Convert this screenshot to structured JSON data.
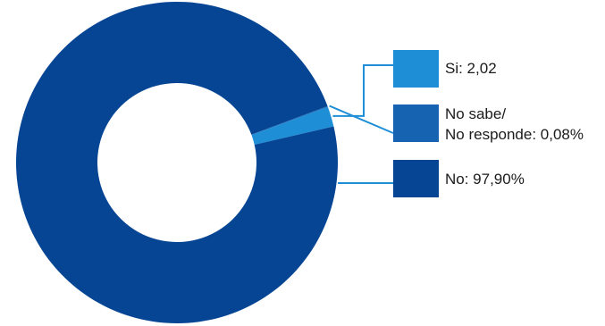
{
  "chart_data": {
    "type": "pie",
    "donut": true,
    "start_angle_deg": 0,
    "series": [
      {
        "values": [
          2.02,
          0.08,
          97.9
        ],
        "colors": [
          "#1e8fd6",
          "#1663b2",
          "#064594"
        ]
      }
    ],
    "legend": [
      {
        "lines": [
          "Si: 2,02"
        ],
        "color": "#1e8fd6"
      },
      {
        "lines": [
          "No sabe/",
          "No responde: 0,08%"
        ],
        "color": "#1663b2"
      },
      {
        "lines": [
          "No: 97,90%"
        ],
        "color": "#064594"
      }
    ],
    "leader_line_color": "#1e8fd6",
    "legend_placement": "right"
  }
}
